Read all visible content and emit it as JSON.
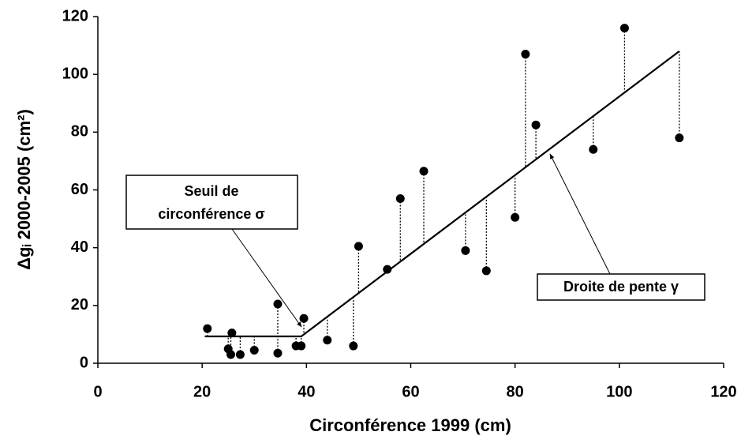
{
  "chart_data": {
    "type": "scatter",
    "xlabel": "Circonférence 1999 (cm)",
    "ylabel": "Δgᵢ 2000-2005 (cm²)",
    "x": [
      21,
      25,
      25.5,
      25.7,
      27.3,
      30,
      34.5,
      34.5,
      38,
      39,
      39.5,
      44,
      49,
      50,
      55.5,
      58,
      62.5,
      70.5,
      74.5,
      80,
      82,
      84,
      95,
      101,
      111.5
    ],
    "values": [
      12,
      5,
      3,
      10.5,
      3,
      4.5,
      20.5,
      3.5,
      6,
      6,
      15.5,
      8,
      6,
      40.5,
      32.5,
      57,
      66.5,
      39,
      32,
      50.5,
      107,
      82.5,
      74,
      116,
      78
    ],
    "color": "#000000",
    "fit": {
      "x": [
        20.5,
        39,
        111.5
      ],
      "y": [
        9.3,
        9.3,
        108
      ]
    },
    "xlim": [
      0,
      120
    ],
    "xticks": [
      0,
      20,
      40,
      60,
      80,
      100,
      120
    ],
    "ylim": [
      0,
      120
    ],
    "yticks": [
      0,
      20,
      40,
      60,
      80,
      100,
      120
    ],
    "annotations": [
      {
        "text": [
          "Seuil de",
          "circonférence σ"
        ]
      },
      {
        "text": [
          "Droite de pente γ"
        ]
      }
    ]
  }
}
